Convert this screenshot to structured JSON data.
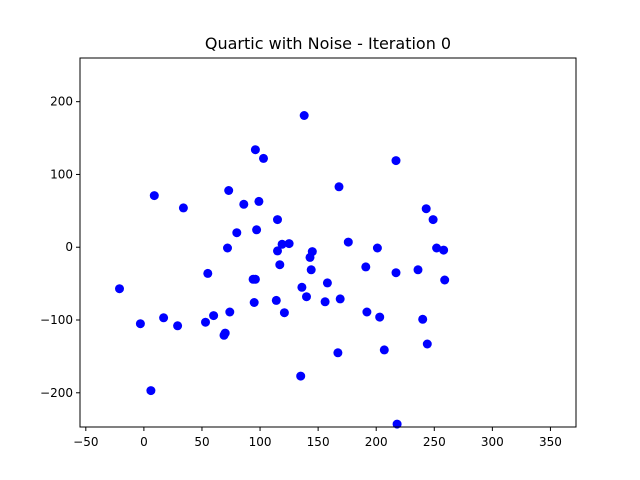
{
  "chart_data": {
    "type": "scatter",
    "title": "Quartic with Noise - Iteration 0",
    "xlabel": "",
    "ylabel": "",
    "xlim": [
      -55,
      372
    ],
    "ylim": [
      -247,
      260
    ],
    "xticks": [
      -50,
      0,
      50,
      100,
      150,
      200,
      250,
      300,
      350
    ],
    "yticks": [
      -200,
      -100,
      0,
      100,
      200
    ],
    "xtick_labels": [
      "−50",
      "0",
      "50",
      "100",
      "150",
      "200",
      "250",
      "300",
      "350"
    ],
    "ytick_labels": [
      "−200",
      "−100",
      "0",
      "100",
      "200"
    ],
    "grid": false,
    "marker_color": "#0000ff",
    "series": [
      {
        "points": [
          [
            -21,
            -57
          ],
          [
            -3,
            -105
          ],
          [
            6,
            -197
          ],
          [
            9,
            71
          ],
          [
            17,
            -97
          ],
          [
            29,
            -108
          ],
          [
            34,
            54
          ],
          [
            53,
            -103
          ],
          [
            55,
            -36
          ],
          [
            60,
            -94
          ],
          [
            69,
            -121
          ],
          [
            70,
            -118
          ],
          [
            72,
            -1
          ],
          [
            73,
            78
          ],
          [
            74,
            -89
          ],
          [
            80,
            20
          ],
          [
            86,
            59
          ],
          [
            94,
            -44
          ],
          [
            95,
            -76
          ],
          [
            96,
            -44
          ],
          [
            96,
            134
          ],
          [
            97,
            24
          ],
          [
            99,
            63
          ],
          [
            103,
            122
          ],
          [
            114,
            -73
          ],
          [
            115,
            -5
          ],
          [
            115,
            38
          ],
          [
            117,
            -24
          ],
          [
            119,
            4
          ],
          [
            121,
            -90
          ],
          [
            125,
            5
          ],
          [
            135,
            -177
          ],
          [
            136,
            -55
          ],
          [
            138,
            181
          ],
          [
            140,
            -68
          ],
          [
            143,
            -14
          ],
          [
            144,
            -31
          ],
          [
            145,
            -6
          ],
          [
            156,
            -75
          ],
          [
            158,
            -49
          ],
          [
            167,
            -145
          ],
          [
            168,
            83
          ],
          [
            169,
            -71
          ],
          [
            176,
            7
          ],
          [
            191,
            -27
          ],
          [
            192,
            -89
          ],
          [
            201,
            -1
          ],
          [
            203,
            -96
          ],
          [
            207,
            -141
          ],
          [
            217,
            119
          ],
          [
            217,
            -35
          ],
          [
            218,
            -243
          ],
          [
            236,
            -31
          ],
          [
            240,
            -99
          ],
          [
            243,
            53
          ],
          [
            244,
            -133
          ],
          [
            249,
            38
          ],
          [
            252,
            -1
          ],
          [
            258,
            -4
          ],
          [
            259,
            -45
          ]
        ]
      }
    ]
  }
}
